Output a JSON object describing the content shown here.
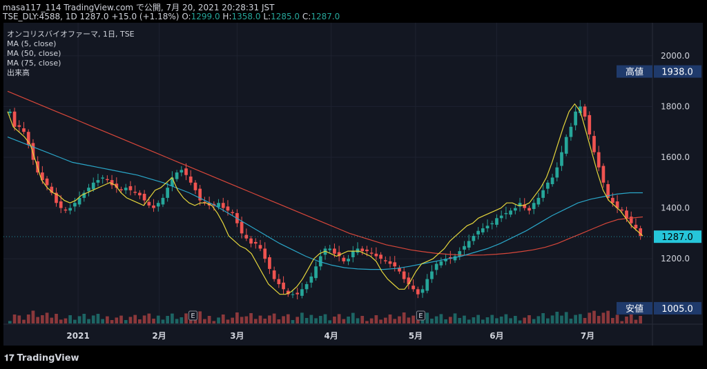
{
  "header": {
    "line1": "masa117_114 TradingView.com で公開, 7月 20, 2021 20:28:31 JST",
    "symbol": "TSE_DLY:4588, 1D",
    "last": "1287.0",
    "change": "+15.0 (+1.18%)",
    "o_label": "O:",
    "o": "1299.0",
    "h_label": "H:",
    "h": "1358.0",
    "l_label": "L:",
    "l": "1285.0",
    "c_label": "C:",
    "c": "1287.0"
  },
  "legend": {
    "title": "オンコリスバイオファーマ, 1日, TSE",
    "ma5": "MA (5, close)",
    "ma50": "MA (50, close)",
    "ma75": "MA (75, close)",
    "volume": "出来高"
  },
  "footer": {
    "brand": "TradingView"
  },
  "colors": {
    "up": "#26a69a",
    "down": "#ef5350",
    "ma5": "#e6d73c",
    "ma50": "#2aa7c9",
    "ma75": "#d9473a",
    "badge_dark": "#1f3a6b",
    "badge_last": "#26c6da"
  },
  "chart_data": {
    "type": "candlestick",
    "x_labels": [
      "2021",
      "2月",
      "3月",
      "4月",
      "5月",
      "6月",
      "7月"
    ],
    "y_ticks": [
      2000,
      1800,
      1600,
      1400,
      1200
    ],
    "y_tick_labels": [
      "2000.0",
      "1800.0",
      "1600.0",
      "1400.0",
      "1200.0"
    ],
    "ylim": [
      945,
      2130
    ],
    "markers": {
      "high": {
        "label": "高値",
        "value": "1938.0"
      },
      "last": {
        "value": "1287.0"
      },
      "low": {
        "label": "安値",
        "value": "1005.0"
      }
    },
    "earnings_marker": "E",
    "close": [
      1780,
      1720,
      1720,
      1700,
      1650,
      1590,
      1540,
      1510,
      1490,
      1460,
      1420,
      1400,
      1390,
      1400,
      1420,
      1440,
      1460,
      1480,
      1500,
      1510,
      1520,
      1510,
      1490,
      1480,
      1470,
      1480,
      1470,
      1460,
      1450,
      1430,
      1410,
      1400,
      1420,
      1440,
      1480,
      1520,
      1540,
      1550,
      1530,
      1500,
      1470,
      1430,
      1420,
      1410,
      1410,
      1420,
      1400,
      1390,
      1380,
      1340,
      1300,
      1280,
      1260,
      1260,
      1240,
      1200,
      1160,
      1120,
      1100,
      1080,
      1060,
      1060,
      1060,
      1080,
      1100,
      1130,
      1170,
      1210,
      1240,
      1240,
      1220,
      1210,
      1190,
      1200,
      1230,
      1240,
      1230,
      1230,
      1220,
      1210,
      1200,
      1190,
      1180,
      1170,
      1150,
      1120,
      1100,
      1080,
      1060,
      1080,
      1120,
      1150,
      1180,
      1190,
      1200,
      1200,
      1210,
      1230,
      1250,
      1270,
      1290,
      1310,
      1320,
      1330,
      1340,
      1360,
      1370,
      1380,
      1390,
      1400,
      1420,
      1400,
      1390,
      1420,
      1440,
      1470,
      1500,
      1520,
      1560,
      1620,
      1680,
      1720,
      1780,
      1800,
      1760,
      1690,
      1620,
      1560,
      1500,
      1440,
      1420,
      1400,
      1390,
      1360,
      1340,
      1320,
      1290
    ],
    "ma5": [
      1780,
      1720,
      1700,
      1680,
      1650,
      1580,
      1510,
      1480,
      1460,
      1450,
      1430,
      1420,
      1430,
      1450,
      1460,
      1470,
      1480,
      1490,
      1500,
      1490,
      1460,
      1440,
      1430,
      1420,
      1410,
      1440,
      1470,
      1480,
      1500,
      1520,
      1470,
      1440,
      1420,
      1410,
      1420,
      1420,
      1410,
      1380,
      1340,
      1290,
      1270,
      1250,
      1240,
      1220,
      1180,
      1140,
      1100,
      1080,
      1060,
      1060,
      1070,
      1090,
      1120,
      1160,
      1200,
      1220,
      1230,
      1220,
      1210,
      1220,
      1230,
      1230,
      1230,
      1220,
      1210,
      1190,
      1150,
      1120,
      1100,
      1080,
      1080,
      1110,
      1150,
      1180,
      1190,
      1200,
      1220,
      1240,
      1270,
      1290,
      1310,
      1330,
      1340,
      1360,
      1370,
      1380,
      1390,
      1400,
      1420,
      1420,
      1410,
      1410,
      1420,
      1450,
      1480,
      1520,
      1580,
      1650,
      1720,
      1780,
      1810,
      1780,
      1700,
      1620,
      1540,
      1470,
      1430,
      1410,
      1390,
      1360,
      1330,
      1310,
      1290
    ],
    "ma50": [
      1680,
      1660,
      1640,
      1620,
      1600,
      1580,
      1570,
      1560,
      1550,
      1540,
      1530,
      1515,
      1500,
      1480,
      1460,
      1435,
      1410,
      1380,
      1350,
      1320,
      1290,
      1260,
      1235,
      1210,
      1190,
      1175,
      1165,
      1160,
      1158,
      1158,
      1162,
      1170,
      1180,
      1190,
      1200,
      1210,
      1225,
      1240,
      1260,
      1285,
      1310,
      1340,
      1370,
      1395,
      1420,
      1435,
      1445,
      1455,
      1460,
      1460
    ],
    "ma75": [
      1860,
      1840,
      1820,
      1800,
      1780,
      1760,
      1740,
      1720,
      1700,
      1680,
      1660,
      1640,
      1620,
      1600,
      1580,
      1560,
      1540,
      1520,
      1500,
      1480,
      1460,
      1440,
      1420,
      1400,
      1380,
      1360,
      1340,
      1320,
      1300,
      1285,
      1270,
      1255,
      1245,
      1235,
      1228,
      1222,
      1218,
      1215,
      1214,
      1215,
      1218,
      1222,
      1228,
      1235,
      1245,
      1260,
      1280,
      1300,
      1320,
      1340,
      1355,
      1360,
      1365
    ]
  }
}
